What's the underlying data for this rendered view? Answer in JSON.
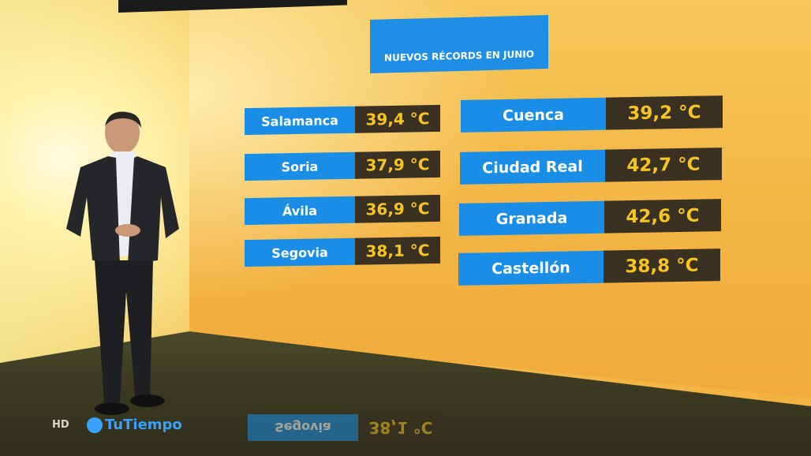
{
  "graphic": {
    "title": "NUEVOS RÉCORDS EN JUNIO",
    "left_column": [
      {
        "city": "Salamanca",
        "temp": "39,4 °C"
      },
      {
        "city": "Soria",
        "temp": "37,9 °C"
      },
      {
        "city": "Ávila",
        "temp": "36,9 °C"
      },
      {
        "city": "Segovia",
        "temp": "38,1 °C"
      }
    ],
    "right_column": [
      {
        "city": "Cuenca",
        "temp": "39,2 °C"
      },
      {
        "city": "Ciudad Real",
        "temp": "42,7 °C"
      },
      {
        "city": "Granada",
        "temp": "42,6 °C"
      },
      {
        "city": "Castellón",
        "temp": "38,8 °C"
      }
    ]
  },
  "overlay": {
    "hd": "HD",
    "brand": "TuTiempo",
    "brand_color": "#3aa0ff"
  },
  "colors": {
    "label_bg": "#1a8ee6",
    "value_bg": "#3a3123",
    "value_text": "#f6c521"
  }
}
